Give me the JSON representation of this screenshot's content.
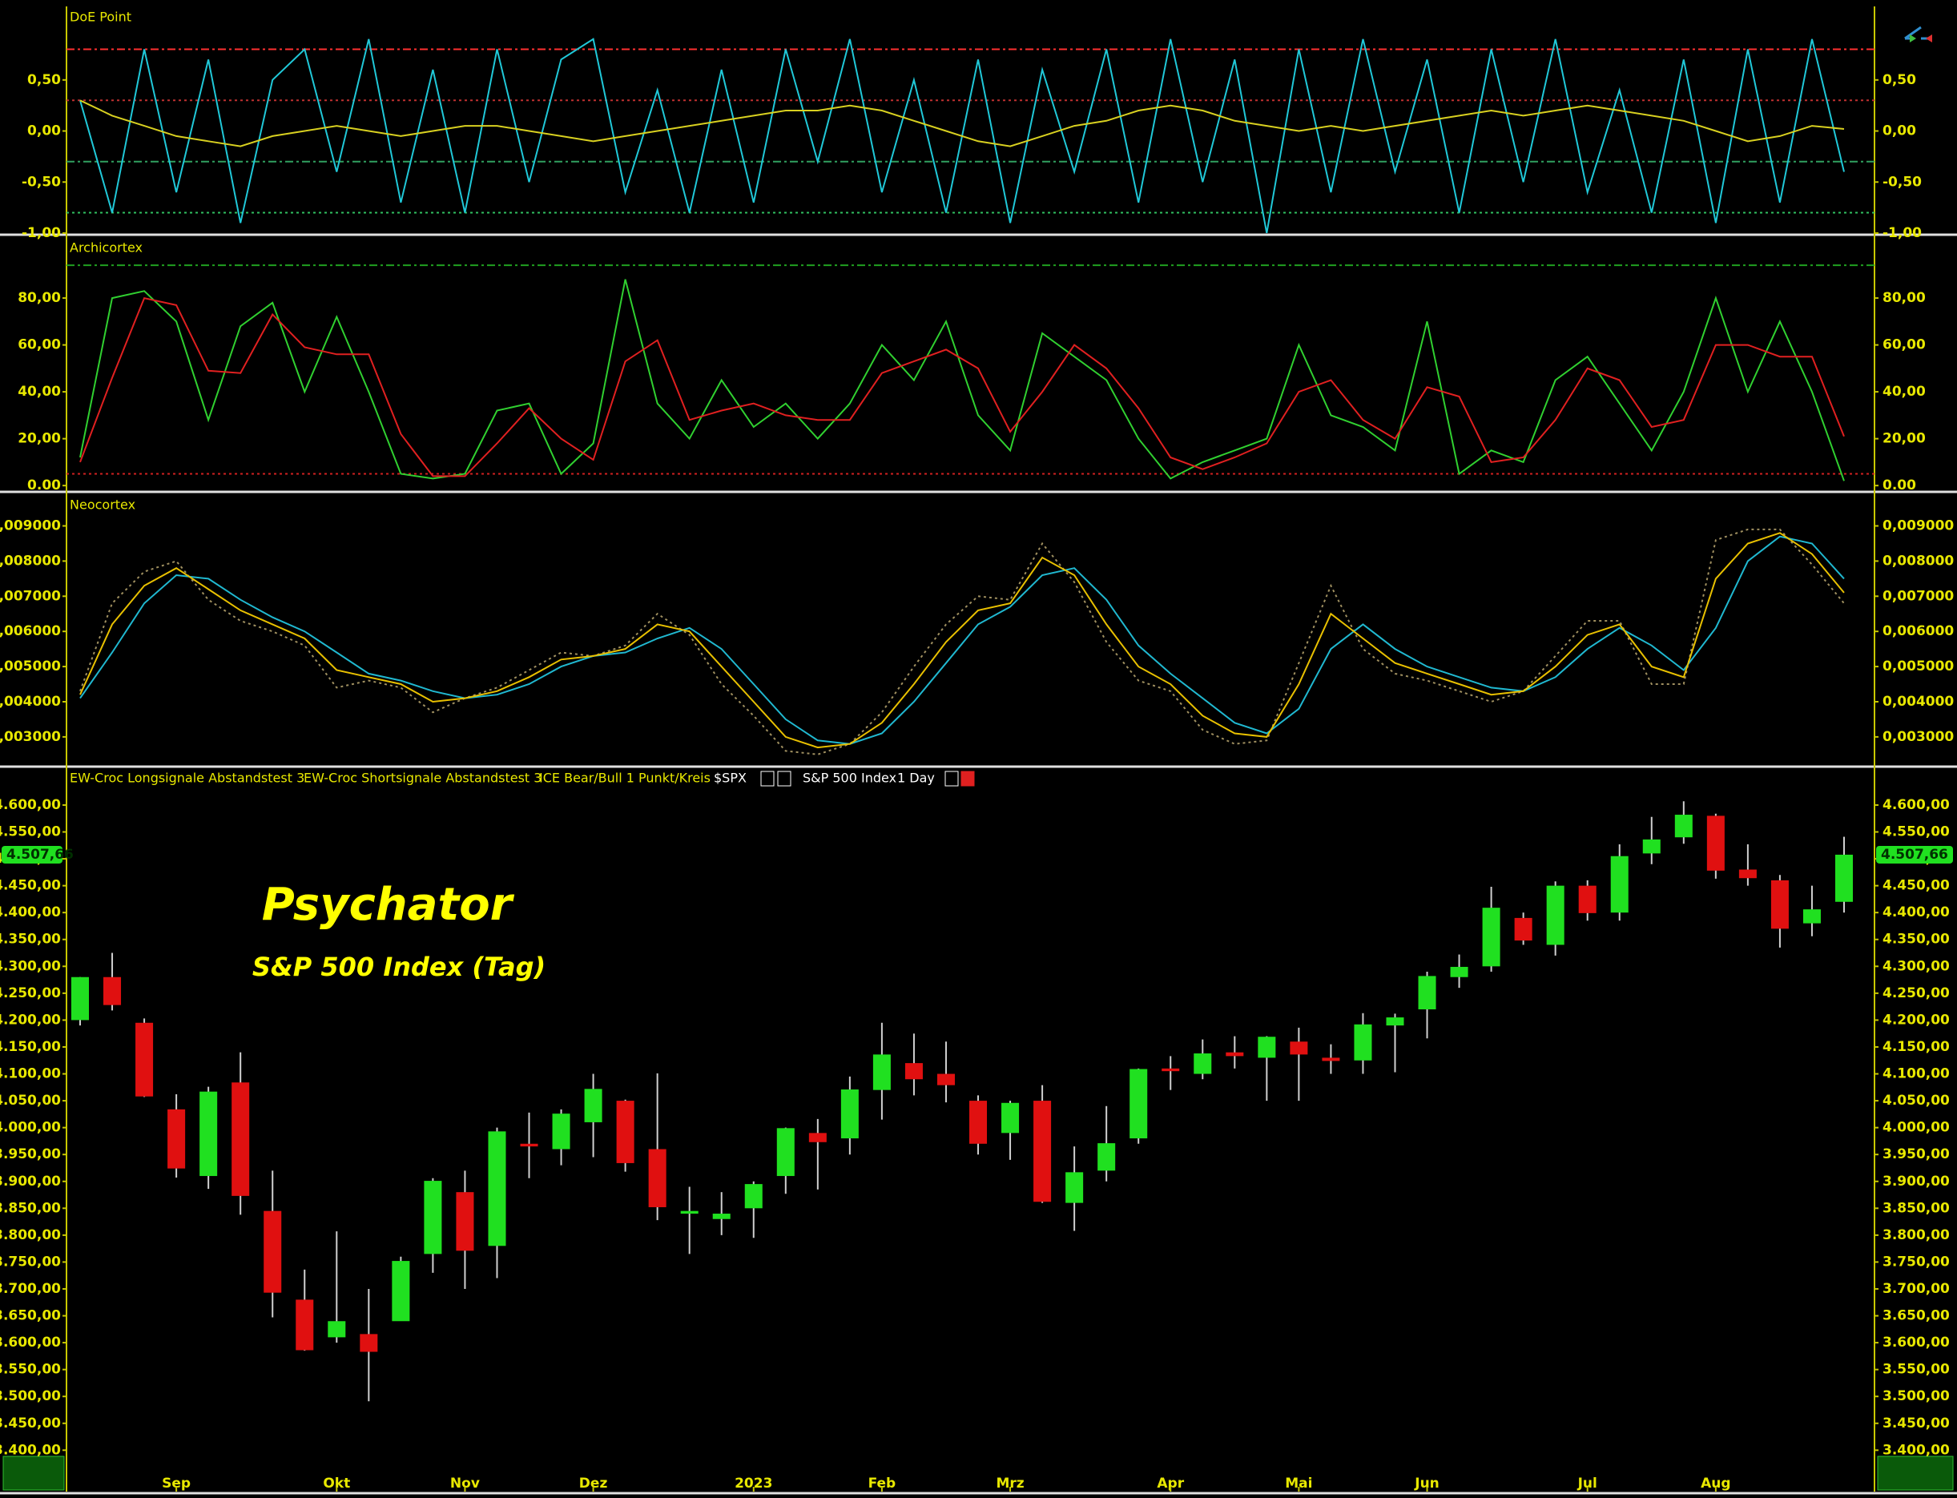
{
  "chart_data": [
    {
      "type": "line",
      "title": "DoE Point",
      "ylim": [
        -1,
        1.22
      ],
      "yticks": [
        {
          "value": 0.5,
          "label": "0,50"
        },
        {
          "value": 0,
          "label": "0,00"
        },
        {
          "value": -0.5,
          "label": "-0,50"
        },
        {
          "value": -1,
          "label": "-1,00"
        }
      ],
      "hlines": [
        {
          "value": 0.8,
          "color": "#ff3030"
        },
        {
          "value": 0.3,
          "color": "#c03030"
        },
        {
          "value": -0.3,
          "color": "#30a060"
        },
        {
          "value": -0.8,
          "color": "#30c060"
        }
      ],
      "series": [
        {
          "color": "#20c8d8",
          "values": [
            0.3,
            -0.8,
            0.8,
            -0.6,
            0.7,
            -0.9,
            0.5,
            0.8,
            -0.4,
            0.9,
            -0.7,
            0.6,
            -0.8,
            0.8,
            -0.5,
            0.7,
            0.9,
            -0.6,
            0.4,
            -0.8,
            0.6,
            -0.7,
            0.8,
            -0.3,
            0.9,
            -0.6,
            0.5,
            -0.8,
            0.7,
            -0.9,
            0.6,
            -0.4,
            0.8,
            -0.7,
            0.9,
            -0.5,
            0.7,
            -1.0,
            0.8,
            -0.6,
            0.9,
            -0.4,
            0.7,
            -0.8,
            0.8,
            -0.5,
            0.9,
            -0.6,
            0.4,
            -0.8,
            0.7,
            -0.9,
            0.8,
            -0.7,
            0.9,
            -0.4
          ]
        },
        {
          "color": "#d8d020",
          "values": [
            0.3,
            0.15,
            0.05,
            -0.05,
            -0.1,
            -0.15,
            -0.05,
            0,
            0.05,
            0,
            -0.05,
            0,
            0.05,
            0.05,
            0,
            -0.05,
            -0.1,
            -0.05,
            0,
            0.05,
            0.1,
            0.15,
            0.2,
            0.2,
            0.25,
            0.2,
            0.1,
            0,
            -0.1,
            -0.15,
            -0.05,
            0.05,
            0.1,
            0.2,
            0.25,
            0.2,
            0.1,
            0.05,
            0,
            0.05,
            0,
            0.05,
            0.1,
            0.15,
            0.2,
            0.15,
            0.2,
            0.25,
            0.2,
            0.15,
            0.1,
            0,
            -0.1,
            -0.05,
            0.05,
            0.02
          ]
        }
      ]
    },
    {
      "type": "line",
      "title": "Archicortex",
      "ylim": [
        -2,
        106
      ],
      "yticks": [
        {
          "value": 0,
          "label": "0.00"
        },
        {
          "value": 20,
          "label": "20,00"
        },
        {
          "value": 40,
          "label": "40,00"
        },
        {
          "value": 60,
          "label": "60,00"
        },
        {
          "value": 80,
          "label": "80,00"
        }
      ],
      "hlines": [
        {
          "value": 94,
          "color": "#20a020"
        },
        {
          "value": 5,
          "color": "#d02020"
        }
      ],
      "series": [
        {
          "color": "#30d030",
          "values": [
            12,
            80,
            83,
            70,
            28,
            68,
            78,
            40,
            72,
            40,
            5,
            3,
            5,
            32,
            35,
            5,
            18,
            88,
            35,
            20,
            45,
            25,
            35,
            20,
            35,
            60,
            45,
            70,
            30,
            15,
            65,
            55,
            45,
            20,
            3,
            10,
            15,
            20,
            60,
            30,
            25,
            15,
            70,
            5,
            15,
            10,
            45,
            55,
            35,
            15,
            40,
            80,
            40,
            70,
            40,
            2
          ]
        },
        {
          "color": "#e02020",
          "values": [
            10,
            46,
            80,
            77,
            49,
            48,
            73,
            59,
            56,
            56,
            22,
            4,
            4,
            18,
            33,
            20,
            11,
            53,
            62,
            28,
            32,
            35,
            30,
            28,
            28,
            48,
            53,
            58,
            50,
            23,
            40,
            60,
            50,
            33,
            12,
            7,
            12,
            18,
            40,
            45,
            28,
            20,
            42,
            38,
            10,
            12,
            28,
            50,
            45,
            25,
            28,
            60,
            60,
            55,
            55,
            21
          ]
        }
      ]
    },
    {
      "type": "line",
      "title": "Neocortex",
      "ylim": [
        0.0022,
        0.0099
      ],
      "yticks": [
        {
          "value": 0.003,
          "label": "0,003000"
        },
        {
          "value": 0.004,
          "label": "0,004000"
        },
        {
          "value": 0.005,
          "label": "0,005000"
        },
        {
          "value": 0.006,
          "label": "0,006000"
        },
        {
          "value": 0.007,
          "label": "0,007000"
        },
        {
          "value": 0.008,
          "label": "0,008000"
        },
        {
          "value": 0.009,
          "label": "0,009000"
        }
      ],
      "series": [
        {
          "color": "#a09060",
          "dashed": true,
          "values": [
            0.0043,
            0.0068,
            0.0077,
            0.008,
            0.0069,
            0.0063,
            0.006,
            0.0056,
            0.0044,
            0.0046,
            0.0044,
            0.0037,
            0.0041,
            0.0044,
            0.0049,
            0.0054,
            0.0053,
            0.0056,
            0.0065,
            0.0059,
            0.0045,
            0.0036,
            0.0026,
            0.0025,
            0.0028,
            0.0037,
            0.005,
            0.0062,
            0.007,
            0.0069,
            0.0085,
            0.0074,
            0.0057,
            0.0046,
            0.0043,
            0.0032,
            0.0028,
            0.0029,
            0.0051,
            0.0073,
            0.0055,
            0.0048,
            0.0046,
            0.0043,
            0.004,
            0.0043,
            0.0053,
            0.0063,
            0.0063,
            0.0045,
            0.0045,
            0.0086,
            0.0089,
            0.0089,
            0.0079,
            0.0068
          ]
        },
        {
          "color": "#20b8d0",
          "values": [
            0.0041,
            0.0054,
            0.0068,
            0.0076,
            0.0075,
            0.0069,
            0.0064,
            0.006,
            0.0054,
            0.0048,
            0.0046,
            0.0043,
            0.0041,
            0.0042,
            0.0045,
            0.005,
            0.0053,
            0.0054,
            0.0058,
            0.0061,
            0.0055,
            0.0045,
            0.0035,
            0.0029,
            0.0028,
            0.0031,
            0.004,
            0.0051,
            0.0062,
            0.0067,
            0.0076,
            0.0078,
            0.0069,
            0.0056,
            0.0048,
            0.0041,
            0.0034,
            0.0031,
            0.0038,
            0.0055,
            0.0062,
            0.0055,
            0.005,
            0.0047,
            0.0044,
            0.0043,
            0.0047,
            0.0055,
            0.0061,
            0.0056,
            0.0049,
            0.0061,
            0.008,
            0.0087,
            0.0085,
            0.0075
          ]
        },
        {
          "color": "#e8c000",
          "values": [
            0.0042,
            0.0062,
            0.0073,
            0.0078,
            0.0072,
            0.0066,
            0.0062,
            0.0058,
            0.0049,
            0.0047,
            0.0045,
            0.004,
            0.0041,
            0.0043,
            0.0047,
            0.0052,
            0.0053,
            0.0055,
            0.0062,
            0.006,
            0.005,
            0.004,
            0.003,
            0.0027,
            0.0028,
            0.0034,
            0.0045,
            0.0057,
            0.0066,
            0.0068,
            0.0081,
            0.0076,
            0.0062,
            0.005,
            0.0045,
            0.0036,
            0.0031,
            0.003,
            0.0045,
            0.0065,
            0.0058,
            0.0051,
            0.0048,
            0.0045,
            0.0042,
            0.0043,
            0.005,
            0.0059,
            0.0062,
            0.005,
            0.0047,
            0.0075,
            0.0085,
            0.0088,
            0.0082,
            0.0071
          ]
        }
      ]
    },
    {
      "type": "candlestick",
      "header": [
        "EW-Croc Longsignale Abstandstest 3",
        "EW-Croc Shortsignale Abstandstest 3",
        "ICE Bear/Bull 1 Punkt/Kreis",
        "$SPX",
        "S&P 500 Index",
        "1 Day"
      ],
      "annotations": [
        "Psychator",
        "S&P 500 Index (Tag)"
      ],
      "price_tag": "4.507,66",
      "up_color": "#20e020",
      "down_color": "#e01010",
      "ylim": [
        3323,
        4667
      ],
      "yticks": [
        {
          "value": 3400,
          "label": "3.400,00"
        },
        {
          "value": 3450,
          "label": "3.450,00"
        },
        {
          "value": 3500,
          "label": "3.500,00"
        },
        {
          "value": 3550,
          "label": "3.550,00"
        },
        {
          "value": 3600,
          "label": "3.600,00"
        },
        {
          "value": 3650,
          "label": "3.650,00"
        },
        {
          "value": 3700,
          "label": "3.700,00"
        },
        {
          "value": 3750,
          "label": "3.750,00"
        },
        {
          "value": 3800,
          "label": "3.800,00"
        },
        {
          "value": 3850,
          "label": "3.850,00"
        },
        {
          "value": 3900,
          "label": "3.900,00"
        },
        {
          "value": 3950,
          "label": "3.950,00"
        },
        {
          "value": 4000,
          "label": "4.000,00"
        },
        {
          "value": 4050,
          "label": "4.050,00"
        },
        {
          "value": 4100,
          "label": "4.100,00"
        },
        {
          "value": 4150,
          "label": "4.150,00"
        },
        {
          "value": 4200,
          "label": "4.200,00"
        },
        {
          "value": 4250,
          "label": "4.250,00"
        },
        {
          "value": 4300,
          "label": "4.300,00"
        },
        {
          "value": 4350,
          "label": "4.350,00"
        },
        {
          "value": 4400,
          "label": "4.400,00"
        },
        {
          "value": 4450,
          "label": "4.450,00"
        },
        {
          "value": 4500,
          "label": "4.500,00"
        },
        {
          "value": 4550,
          "label": "4.550,00"
        },
        {
          "value": 4600,
          "label": "4.600,00"
        }
      ],
      "categories": [
        null,
        null,
        null,
        "Sep",
        null,
        null,
        null,
        null,
        "Okt",
        null,
        null,
        null,
        "Nov",
        null,
        null,
        null,
        "Dez",
        null,
        null,
        null,
        null,
        "2023",
        null,
        null,
        null,
        "Feb",
        null,
        null,
        null,
        "Mrz",
        null,
        null,
        null,
        null,
        "Apr",
        null,
        null,
        null,
        "Mai",
        null,
        null,
        null,
        "Jun",
        null,
        null,
        null,
        null,
        "Jul",
        null,
        null,
        null,
        "Aug",
        null,
        null,
        null,
        null
      ],
      "open": [
        4200,
        4280,
        4195,
        4034,
        3910,
        4084,
        3845,
        3680,
        3610,
        3616,
        3640,
        3765,
        3880,
        3780,
        3970,
        3960,
        4010,
        4050,
        3960,
        3840,
        3830,
        3850,
        3910,
        3990,
        3980,
        4070,
        4120,
        4100,
        4050,
        3990,
        4050,
        3860,
        3920,
        3980,
        4110,
        4100,
        4140,
        4130,
        4160,
        4130,
        4125,
        4190,
        4220,
        4280,
        4300,
        4390,
        4340,
        4450,
        4400,
        4510,
        4540,
        4580,
        4480,
        4460,
        4380,
        4420
      ],
      "high": [
        4280,
        4325,
        4203,
        4062,
        4076,
        4140,
        3920,
        3736,
        3807,
        3700,
        3760,
        3906,
        3920,
        4000,
        4028,
        4034,
        4100,
        4052,
        4101,
        3890,
        3880,
        3900,
        4000,
        4016,
        4095,
        4195,
        4175,
        4160,
        4060,
        4050,
        4079,
        3965,
        4040,
        4110,
        4133,
        4164,
        4170,
        4170,
        4186,
        4155,
        4213,
        4212,
        4290,
        4322,
        4448,
        4400,
        4458,
        4460,
        4527,
        4578,
        4607,
        4584,
        4527,
        4470,
        4450,
        4541
      ],
      "low": [
        4190,
        4218,
        4057,
        3907,
        3886,
        3838,
        3647,
        3585,
        3600,
        3491,
        3642,
        3730,
        3700,
        3720,
        3906,
        3930,
        3945,
        3918,
        3828,
        3765,
        3800,
        3795,
        3877,
        3885,
        3950,
        4015,
        4060,
        4047,
        3950,
        3940,
        3860,
        3808,
        3900,
        3970,
        4070,
        4090,
        4110,
        4050,
        4050,
        4100,
        4100,
        4103,
        4166,
        4260,
        4290,
        4340,
        4320,
        4385,
        4385,
        4490,
        4528,
        4463,
        4450,
        4335,
        4356,
        4400
      ],
      "close": [
        4280,
        4228,
        4058,
        3924,
        4067,
        3873,
        3693,
        3586,
        3640,
        3583,
        3752,
        3901,
        3771,
        3993,
        3965,
        4026,
        4072,
        3934,
        3852,
        3845,
        3840,
        3895,
        3999,
        3973,
        4071,
        4136,
        4090,
        4079,
        3970,
        4046,
        3862,
        3917,
        3971,
        4109,
        4105,
        4138,
        4133,
        4169,
        4136,
        4124,
        4192,
        4205,
        4282,
        4299,
        4409,
        4348,
        4450,
        4399,
        4505,
        4536,
        4582,
        4478,
        4464,
        4370,
        4406,
        4507.66
      ]
    }
  ]
}
